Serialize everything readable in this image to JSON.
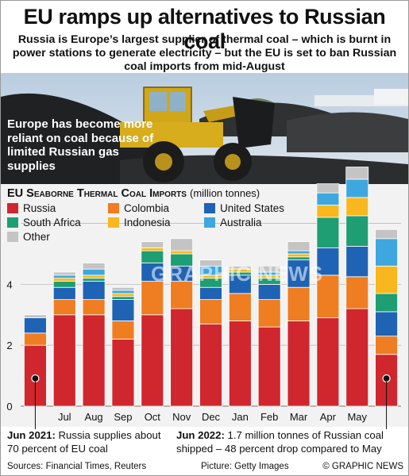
{
  "header": {
    "title": "EU ramps up alternatives to Russian coal",
    "subtitle": "Russia is Europe’s largest supplier of thermal coal – which is burnt in power stations to generate electricity – but the EU is set to ban Russian coal imports from mid-August"
  },
  "photo": {
    "callout": "Europe has become more reliant on coal because of limited Russian gas supplies"
  },
  "chart_heading": {
    "main": "EU Seaborne Thermal Coal Imports",
    "unit": "(million tonnes)"
  },
  "chart_data": {
    "type": "bar",
    "stacked": true,
    "categories": [
      "Jun",
      "Jul",
      "Aug",
      "Sep",
      "Oct",
      "Nov",
      "Dec",
      "Jan",
      "Feb",
      "Mar",
      "Apr",
      "May",
      "Jun"
    ],
    "x_tick_labels": [
      "",
      "Jul",
      "Aug",
      "Sep",
      "Oct",
      "Nov",
      "Dec",
      "Jan",
      "Feb",
      "Mar",
      "Apr",
      "May",
      ""
    ],
    "y_ticks": [
      0,
      2,
      4,
      6
    ],
    "ylim": [
      0,
      6.9
    ],
    "grid": true,
    "series": [
      {
        "name": "Russia",
        "color": "#d0262e",
        "values": [
          2.0,
          3.0,
          3.0,
          2.2,
          3.0,
          3.2,
          2.7,
          2.8,
          2.6,
          2.8,
          2.9,
          3.2,
          1.7
        ]
      },
      {
        "name": "Colombia",
        "color": "#ef7d22",
        "values": [
          0.4,
          0.5,
          0.5,
          0.6,
          1.1,
          0.9,
          0.8,
          0.9,
          0.9,
          1.1,
          1.4,
          1.05,
          0.6
        ]
      },
      {
        "name": "United States",
        "color": "#1f63b4",
        "values": [
          0.5,
          0.4,
          0.6,
          0.7,
          0.6,
          0.5,
          0.4,
          0.6,
          0.5,
          0.9,
          0.9,
          1.0,
          0.8
        ]
      },
      {
        "name": "South Africa",
        "color": "#1e9e72",
        "values": [
          0.0,
          0.2,
          0.1,
          0.1,
          0.4,
          0.4,
          0.3,
          0.1,
          0.2,
          0.1,
          1.0,
          1.0,
          0.6
        ]
      },
      {
        "name": "Indonesia",
        "color": "#f8b71c",
        "values": [
          0.0,
          0.1,
          0.1,
          0.1,
          0.1,
          0.1,
          0.1,
          0.1,
          0.1,
          0.1,
          0.4,
          0.6,
          0.9
        ]
      },
      {
        "name": "Australia",
        "color": "#3ea7df",
        "values": [
          0.0,
          0.1,
          0.2,
          0.1,
          0.0,
          0.0,
          0.3,
          0.0,
          0.1,
          0.1,
          0.4,
          0.6,
          0.9
        ]
      },
      {
        "name": "Other",
        "color": "#c4c4c4",
        "values": [
          0.1,
          0.1,
          0.2,
          0.1,
          0.2,
          0.4,
          0.2,
          0.1,
          0.2,
          0.3,
          0.3,
          0.4,
          0.3
        ]
      }
    ],
    "annotations": [
      {
        "category_index": 0,
        "lead": "Jun 2021:",
        "text": "Russia supplies about 70 percent of EU coal"
      },
      {
        "category_index": 12,
        "lead": "Jun 2022:",
        "text": "1.7 million tonnes of Russian coal shipped – 48 percent drop compared to May"
      }
    ]
  },
  "watermark": "GRAPHIC NEWS",
  "footer": {
    "sources": "Sources: Financial Times, Reuters",
    "picture": "Picture: Getty Images",
    "copyright": "© GRAPHIC NEWS"
  }
}
